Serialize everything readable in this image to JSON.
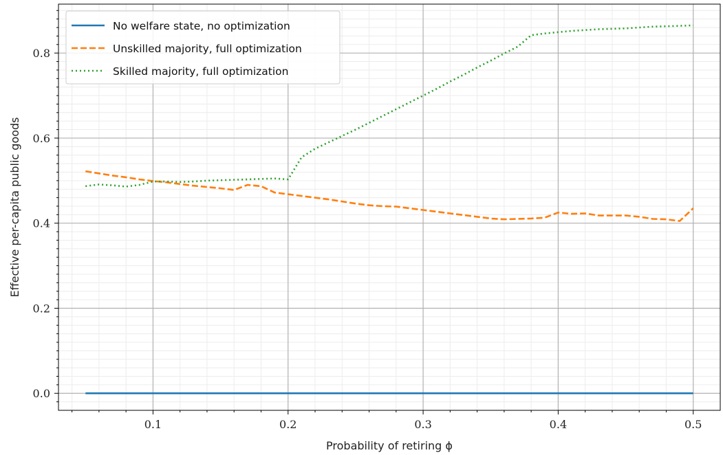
{
  "chart_data": {
    "type": "line",
    "xlabel": "Probability of retiring ϕ",
    "ylabel": "Effective per-capita public goods",
    "xlim": [
      0.03,
      0.52
    ],
    "ylim": [
      -0.04,
      0.915
    ],
    "xticks": [
      0.1,
      0.2,
      0.3,
      0.4,
      0.5
    ],
    "yticks": [
      0.0,
      0.2,
      0.4,
      0.6,
      0.8
    ],
    "xtick_labels": [
      "0.1",
      "0.2",
      "0.3",
      "0.4",
      "0.5"
    ],
    "ytick_labels": [
      "0.0",
      "0.2",
      "0.4",
      "0.6",
      "0.8"
    ],
    "grid": "major and minor",
    "legend_position": "top-left",
    "series": [
      {
        "name": "No welfare state, no optimization",
        "color": "#1f77b4",
        "style": "solid",
        "x": [
          0.05,
          0.5
        ],
        "y": [
          0.0,
          0.0
        ]
      },
      {
        "name": "Unskilled majority, full optimization",
        "color": "#ff7f0e",
        "style": "dashed",
        "x": [
          0.05,
          0.06,
          0.07,
          0.08,
          0.09,
          0.1,
          0.11,
          0.12,
          0.13,
          0.14,
          0.15,
          0.16,
          0.17,
          0.18,
          0.19,
          0.2,
          0.21,
          0.22,
          0.23,
          0.24,
          0.25,
          0.26,
          0.27,
          0.28,
          0.29,
          0.3,
          0.31,
          0.32,
          0.33,
          0.34,
          0.35,
          0.36,
          0.37,
          0.38,
          0.39,
          0.4,
          0.41,
          0.42,
          0.43,
          0.44,
          0.45,
          0.46,
          0.47,
          0.48,
          0.49,
          0.5
        ],
        "y": [
          0.522,
          0.517,
          0.512,
          0.508,
          0.503,
          0.499,
          0.496,
          0.492,
          0.488,
          0.485,
          0.482,
          0.478,
          0.49,
          0.487,
          0.472,
          0.468,
          0.464,
          0.46,
          0.456,
          0.451,
          0.446,
          0.442,
          0.44,
          0.439,
          0.435,
          0.431,
          0.427,
          0.423,
          0.419,
          0.415,
          0.411,
          0.409,
          0.41,
          0.411,
          0.413,
          0.425,
          0.422,
          0.423,
          0.418,
          0.418,
          0.418,
          0.415,
          0.41,
          0.409,
          0.405,
          0.435
        ]
      },
      {
        "name": "Skilled majority, full optimization",
        "color": "#2ca02c",
        "style": "dotted",
        "x": [
          0.05,
          0.06,
          0.07,
          0.08,
          0.09,
          0.1,
          0.11,
          0.12,
          0.13,
          0.14,
          0.15,
          0.16,
          0.17,
          0.18,
          0.19,
          0.2,
          0.21,
          0.22,
          0.23,
          0.24,
          0.25,
          0.26,
          0.27,
          0.28,
          0.29,
          0.3,
          0.31,
          0.32,
          0.33,
          0.34,
          0.35,
          0.36,
          0.37,
          0.38,
          0.39,
          0.4,
          0.41,
          0.42,
          0.43,
          0.44,
          0.45,
          0.46,
          0.47,
          0.48,
          0.49,
          0.5
        ],
        "y": [
          0.487,
          0.491,
          0.489,
          0.486,
          0.49,
          0.498,
          0.498,
          0.497,
          0.498,
          0.5,
          0.501,
          0.502,
          0.503,
          0.504,
          0.505,
          0.503,
          0.555,
          0.575,
          0.59,
          0.605,
          0.62,
          0.636,
          0.652,
          0.668,
          0.684,
          0.7,
          0.716,
          0.733,
          0.749,
          0.766,
          0.782,
          0.799,
          0.815,
          0.842,
          0.846,
          0.849,
          0.852,
          0.854,
          0.856,
          0.857,
          0.858,
          0.86,
          0.862,
          0.863,
          0.864,
          0.865
        ]
      }
    ]
  }
}
